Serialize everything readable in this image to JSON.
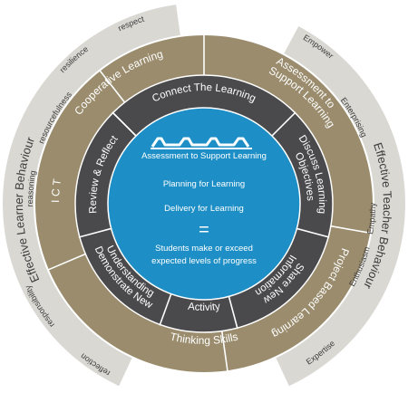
{
  "colors": {
    "outer_band": "#d9d8d3",
    "outer_text": "#3c3c3c",
    "gold_ring": "#9a8c6d",
    "gold_text": "#ffffff",
    "dark_ring": "#4a4a4c",
    "dark_text": "#ffffff",
    "center": "#1e8fc6",
    "center_text": "#ffffff",
    "separator": "#ffffff"
  },
  "outer_left": {
    "title": "Effective Learner Behaviour",
    "words": [
      "resilience",
      "respect",
      "resourcefulness",
      "reasoning",
      "responsibility",
      "reflection"
    ]
  },
  "outer_right": {
    "title": "Effective Teacher Behaviour",
    "words": [
      "Empower",
      "Enterprising",
      "Empathy",
      "Enthusiasm",
      "Expertise"
    ]
  },
  "gold_ring": {
    "segments": [
      "Cooperative Learning",
      "Assessment to",
      "Support Learning",
      "Project Based Learning",
      "Thinking Skills",
      "I C T"
    ]
  },
  "dark_ring": {
    "segments": [
      "Connect The Learning",
      "Discuss Learning",
      "Objectives",
      "Share New",
      "Information",
      "Activity",
      "Demonstrate New",
      "Understanding",
      "Review & Reflect"
    ]
  },
  "center": {
    "logo_caption": "Assessment to Support Learning",
    "line1": "Planning for Learning",
    "line2": "Delivery for Learning",
    "equals": "=",
    "result1": "Students make or exceed",
    "result2": "expected levels of progress"
  }
}
